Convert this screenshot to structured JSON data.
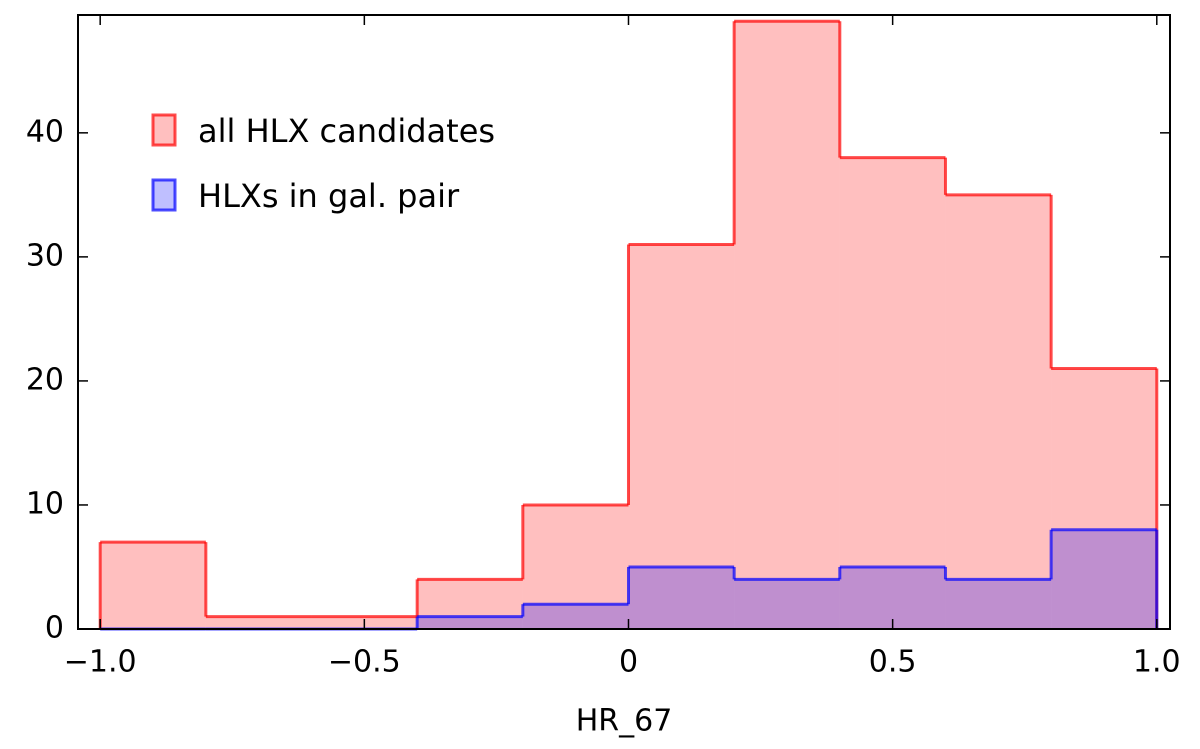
{
  "chart_data": {
    "type": "histogram",
    "xlabel": "HR_67",
    "bins": [
      -1.0,
      -0.8,
      -0.6,
      -0.4,
      -0.2,
      0,
      0.2,
      0.4,
      0.6,
      0.8,
      1.0
    ],
    "series": [
      {
        "name": "all HLX candidates",
        "color": "#ff0000",
        "values": [
          7,
          1,
          1,
          4,
          10,
          31,
          49,
          38,
          35,
          21
        ]
      },
      {
        "name": "HLXs in gal. pair",
        "color": "#0000ff",
        "values": [
          0,
          0,
          0,
          1,
          2,
          5,
          4,
          5,
          4,
          8
        ]
      }
    ],
    "xlim": [
      -1.042,
      1.025
    ],
    "ylim": [
      0,
      49.5
    ],
    "xticks": [
      {
        "value": -1.0,
        "label": "−1.0"
      },
      {
        "value": -0.5,
        "label": "−0.5"
      },
      0,
      0.5,
      {
        "value": 1.0,
        "label": "1.0"
      }
    ],
    "yticks": [
      0,
      10,
      20,
      30,
      40
    ],
    "legend": "upper left",
    "grid": false
  }
}
